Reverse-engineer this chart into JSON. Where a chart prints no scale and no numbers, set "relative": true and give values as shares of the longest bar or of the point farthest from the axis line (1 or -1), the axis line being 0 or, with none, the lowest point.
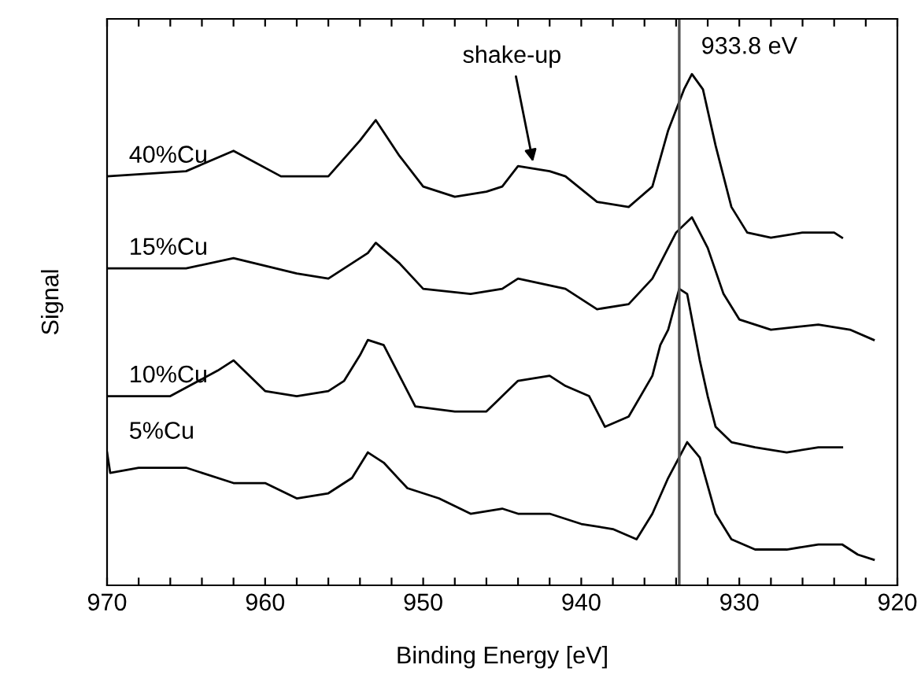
{
  "chart_data": {
    "type": "line",
    "relative": true,
    "xlabel": "Binding Energy [eV]",
    "ylabel": "Signal",
    "xlim": [
      970,
      920
    ],
    "xticks": [
      970,
      {
        "value": 968,
        "label": null
      },
      {
        "value": 966,
        "label": null
      },
      {
        "value": 964,
        "label": null
      },
      {
        "value": 962,
        "label": null
      },
      960,
      {
        "value": 958,
        "label": null
      },
      {
        "value": 956,
        "label": null
      },
      {
        "value": 954,
        "label": null
      },
      {
        "value": 952,
        "label": null
      },
      950,
      {
        "value": 948,
        "label": null
      },
      {
        "value": 946,
        "label": null
      },
      {
        "value": 944,
        "label": null
      },
      {
        "value": 942,
        "label": null
      },
      940,
      {
        "value": 938,
        "label": null
      },
      {
        "value": 936,
        "label": null
      },
      {
        "value": 934,
        "label": null
      },
      {
        "value": 932,
        "label": null
      },
      930,
      {
        "value": 928,
        "label": null
      },
      {
        "value": 926,
        "label": null
      },
      {
        "value": 924,
        "label": null
      },
      {
        "value": 922,
        "label": null
      },
      920
    ],
    "tick_labels": "x",
    "grid": false,
    "legend": false,
    "marker": "none",
    "line_style": "solid",
    "ref_lines": [
      {
        "axis": "x",
        "value": 933.8,
        "label": "933.8 eV",
        "color": "#555555"
      }
    ],
    "annotations": [
      {
        "text": "shake-up",
        "x": 943,
        "y": 0.82
      }
    ],
    "series": [
      {
        "name": "40%Cu",
        "color": "#000000",
        "x": [
          970,
          965,
          962,
          959,
          956,
          954,
          953,
          951.5,
          950,
          948,
          946,
          945,
          944,
          942,
          941,
          939,
          937,
          935.5,
          934.5,
          933.5,
          933,
          932.3,
          931.5,
          930.5,
          929.5,
          928,
          926,
          924,
          923.5
        ],
        "values": [
          0.8,
          0.81,
          0.85,
          0.8,
          0.8,
          0.87,
          0.91,
          0.84,
          0.78,
          0.76,
          0.77,
          0.78,
          0.82,
          0.81,
          0.8,
          0.75,
          0.74,
          0.78,
          0.89,
          0.97,
          1.0,
          0.97,
          0.86,
          0.74,
          0.69,
          0.68,
          0.69,
          0.69,
          0.68
        ]
      },
      {
        "name": "15%Cu",
        "color": "#000000",
        "x": [
          970,
          965,
          962,
          958,
          956,
          953.5,
          953,
          951.5,
          950,
          947,
          945,
          944,
          941,
          939,
          937,
          935.5,
          934,
          933,
          932,
          931,
          930,
          928,
          925,
          923,
          921.5
        ],
        "values": [
          0.62,
          0.62,
          0.64,
          0.61,
          0.6,
          0.65,
          0.67,
          0.63,
          0.58,
          0.57,
          0.58,
          0.6,
          0.58,
          0.54,
          0.55,
          0.6,
          0.69,
          0.72,
          0.66,
          0.57,
          0.52,
          0.5,
          0.51,
          0.5,
          0.48
        ]
      },
      {
        "name": "10%Cu",
        "color": "#000000",
        "x": [
          970,
          966,
          963,
          962,
          960,
          958,
          956,
          955,
          954,
          953.5,
          952.5,
          951.5,
          950.5,
          948,
          946,
          945,
          944,
          942,
          941,
          939.5,
          938.5,
          937,
          935.5,
          935,
          934.5,
          933.8,
          933.3,
          932.5,
          932,
          931.5,
          930.5,
          929,
          927,
          925,
          923.5
        ],
        "values": [
          0.37,
          0.37,
          0.42,
          0.44,
          0.38,
          0.37,
          0.38,
          0.4,
          0.45,
          0.48,
          0.47,
          0.41,
          0.35,
          0.34,
          0.34,
          0.37,
          0.4,
          0.41,
          0.39,
          0.37,
          0.31,
          0.33,
          0.41,
          0.47,
          0.5,
          0.58,
          0.57,
          0.44,
          0.37,
          0.31,
          0.28,
          0.27,
          0.26,
          0.27,
          0.27
        ]
      },
      {
        "name": "5%Cu",
        "color": "#000000",
        "x": [
          970,
          969.8,
          968,
          965,
          962,
          960,
          958,
          956,
          954.5,
          953.5,
          952.5,
          951,
          949,
          947,
          945,
          944,
          942,
          940,
          938,
          936.5,
          935.5,
          934.5,
          933.3,
          932.5,
          931.5,
          930.5,
          929,
          927,
          925,
          923.5,
          922.5,
          921.5
        ],
        "values": [
          0.26,
          0.22,
          0.23,
          0.23,
          0.2,
          0.2,
          0.17,
          0.18,
          0.21,
          0.26,
          0.24,
          0.19,
          0.17,
          0.14,
          0.15,
          0.14,
          0.14,
          0.12,
          0.11,
          0.09,
          0.14,
          0.21,
          0.28,
          0.25,
          0.14,
          0.09,
          0.07,
          0.07,
          0.08,
          0.08,
          0.06,
          0.05
        ]
      }
    ]
  }
}
